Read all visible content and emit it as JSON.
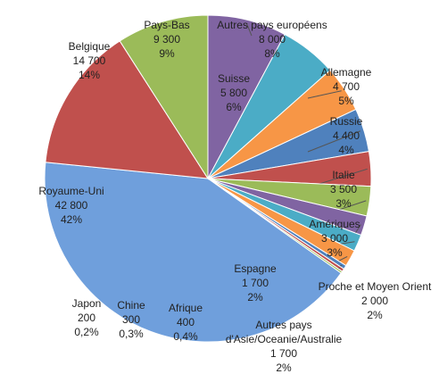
{
  "chart_data": {
    "type": "pie",
    "categories": [
      "Autres pays européens",
      "Suisse",
      "Allemagne",
      "Russie",
      "Italie",
      "Amériques",
      "Proche et Moyen Orient",
      "Espagne",
      "Autres pays d'Asie/Oceanie/Australie",
      "Afrique",
      "Chine",
      "Japon",
      "Royaume-Uni",
      "Belgique",
      "Pays-Bas"
    ],
    "values": [
      8000,
      5800,
      4700,
      4400,
      3500,
      3000,
      2000,
      1700,
      1700,
      400,
      300,
      200,
      42800,
      14700,
      9300
    ],
    "value_labels": [
      "8 000",
      "5 800",
      "4 700",
      "4 400",
      "3 500",
      "3 000",
      "2 000",
      "1 700",
      "1 700",
      "400",
      "300",
      "200",
      "42 800",
      "14 700",
      "9 300"
    ],
    "percent_labels": [
      "8%",
      "6%",
      "5%",
      "4%",
      "3%",
      "3%",
      "2%",
      "2%",
      "2%",
      "0,4%",
      "0,3%",
      "0,2%",
      "42%",
      "14%",
      "9%"
    ],
    "colors": [
      "#8064a2",
      "#4bacc6",
      "#f79646",
      "#4f81bd",
      "#c0504d",
      "#9bbb59",
      "#8064a2",
      "#4bacc6",
      "#f79646",
      "#4f81bd",
      "#c0504d",
      "#9bbb59",
      "#6f9fdc",
      "#c0504d",
      "#9bbb59"
    ]
  }
}
